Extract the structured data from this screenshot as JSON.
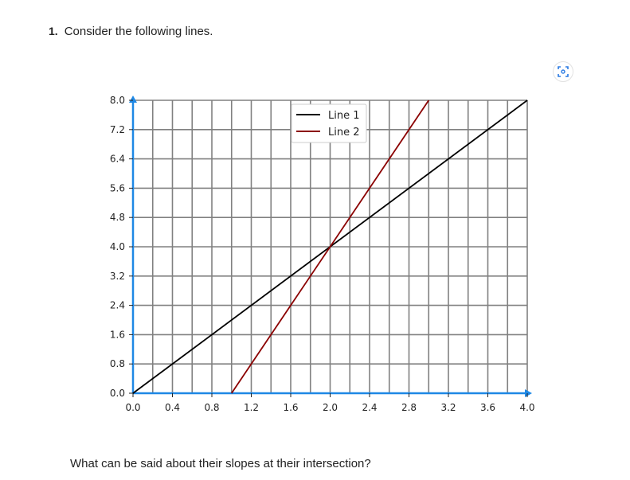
{
  "question": {
    "number": "1.",
    "prompt": "Consider the following lines.",
    "follow_up": "What can be said about their slopes at their intersection?"
  },
  "toolbar": {
    "focus_icon": "focus-mode-icon"
  },
  "colors": {
    "axis": "#1e88e5",
    "grid": "#808080",
    "line1": "#000000",
    "line2": "#8b0000"
  },
  "chart_data": {
    "type": "line",
    "xlim": [
      0,
      4.0
    ],
    "ylim": [
      0,
      8.0
    ],
    "grid": true,
    "legend_position": "top-center",
    "x_ticks": [
      "0.0",
      "0.4",
      "0.8",
      "1.2",
      "1.6",
      "2.0",
      "2.4",
      "2.8",
      "3.2",
      "3.6",
      "4.0"
    ],
    "y_ticks": [
      "0.0",
      "0.8",
      "1.6",
      "2.4",
      "3.2",
      "4.0",
      "4.8",
      "5.6",
      "6.4",
      "7.2",
      "8.0"
    ],
    "series": [
      {
        "name": "Line 1",
        "color": "#000000",
        "x": [
          0,
          4.0
        ],
        "y": [
          0,
          8.0
        ]
      },
      {
        "name": "Line 2",
        "color": "#8b0000",
        "x": [
          1.0,
          3.0
        ],
        "y": [
          0,
          8.0
        ]
      }
    ]
  }
}
